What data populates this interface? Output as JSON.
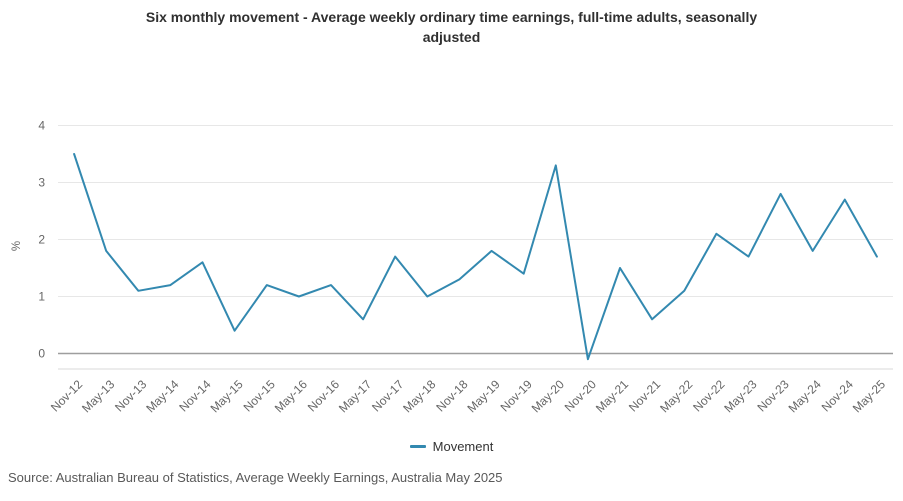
{
  "title": "Six monthly movement - Average weekly ordinary time earnings, full-time adults, seasonally adjusted",
  "legend": {
    "items": [
      {
        "label": "Movement",
        "color": "#3389b0"
      }
    ]
  },
  "source": "Source: Australian Bureau of Statistics, Average Weekly Earnings, Australia May 2025",
  "chart_data": {
    "type": "line",
    "title": "Six monthly movement - Average weekly ordinary time earnings, full-time adults, seasonally adjusted",
    "xlabel": "",
    "ylabel": "%",
    "categories": [
      "Nov-12",
      "May-13",
      "Nov-13",
      "May-14",
      "Nov-14",
      "May-15",
      "Nov-15",
      "May-16",
      "Nov-16",
      "May-17",
      "Nov-17",
      "May-18",
      "Nov-18",
      "May-19",
      "Nov-19",
      "May-20",
      "Nov-20",
      "May-21",
      "Nov-21",
      "May-22",
      "Nov-22",
      "May-23",
      "Nov-23",
      "May-24",
      "Nov-24",
      "May-25"
    ],
    "series": [
      {
        "name": "Movement",
        "values": [
          3.5,
          1.8,
          1.1,
          1.2,
          1.6,
          0.4,
          1.2,
          1.0,
          1.2,
          0.6,
          1.7,
          1.0,
          1.3,
          1.8,
          1.4,
          3.3,
          -0.1,
          1.5,
          0.6,
          1.1,
          2.1,
          1.7,
          2.8,
          1.8,
          2.7,
          1.7
        ]
      }
    ],
    "yticks": [
      0,
      1,
      2,
      3,
      4
    ],
    "ylim": [
      -0.3,
      4
    ],
    "grid": true,
    "legend_position": "bottom",
    "colors": {
      "line": "#3389b0",
      "grid": "#e7e7e7",
      "zero_line": "#9e9e9e",
      "axis_line": "#d9d9d9",
      "tick_label": "#666666",
      "title": "#303030",
      "source": "#595959"
    }
  }
}
